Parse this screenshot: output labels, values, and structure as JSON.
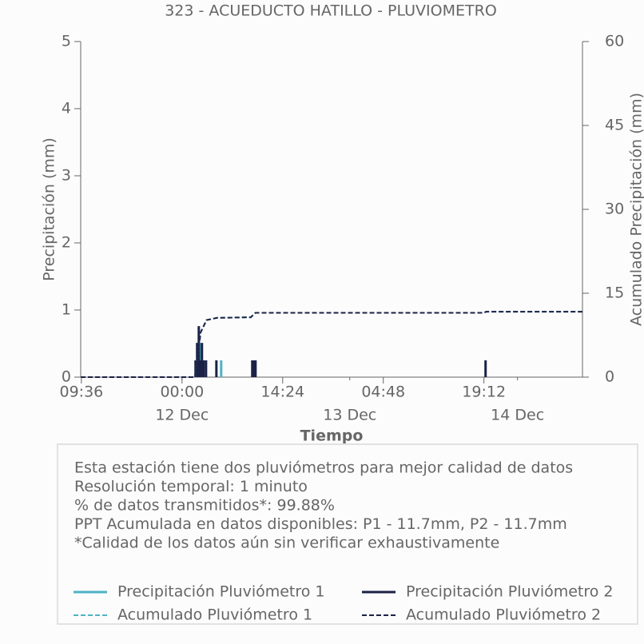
{
  "chart_data": {
    "type": "line",
    "title": "323 - ACUEDUCTO HATILLO - PLUVIOMETRO",
    "x_label": "Tiempo",
    "y_label": "Precipitación (mm)",
    "y2_label": "Acumulado Precipitación (mm)",
    "xlim": [
      "11 Dec 09:30",
      "14 Dec 09:18"
    ],
    "xticks": [
      {
        "value": "11 Dec 09:36",
        "label": "09:36"
      },
      {
        "value": "12 Dec 00:00",
        "label": "00:00"
      },
      {
        "value": "12 Dec 14:24",
        "label": "14:24"
      },
      {
        "value": "13 Dec 04:48",
        "label": "04:48"
      },
      {
        "value": "13 Dec 19:12",
        "label": "19:12"
      }
    ],
    "xdays": [
      {
        "value": "12 Dec 00:00",
        "label": "12 Dec"
      },
      {
        "value": "13 Dec 00:00",
        "label": "13 Dec"
      },
      {
        "value": "14 Dec 00:00",
        "label": "14 Dec"
      }
    ],
    "ylim": [
      0,
      5
    ],
    "yticks": [
      0,
      1,
      2,
      3,
      4,
      5
    ],
    "y2lim": [
      0,
      60
    ],
    "y2ticks": [
      0,
      15,
      30,
      45,
      60
    ],
    "series": [
      {
        "name": "Precipitación Pluviómetro 1",
        "color": "#4eb3c4",
        "kind": "bar",
        "x": [
          "12 Dec 02:10",
          "12 Dec 02:38",
          "12 Dec 03:05",
          "12 Dec 05:36",
          "12 Dec 10:17"
        ],
        "values": [
          0.51,
          0.51,
          0.25,
          0.25,
          0.25
        ]
      },
      {
        "name": "Precipitación Pluviómetro 2",
        "color": "#1c2247",
        "kind": "bar",
        "x": [
          "12 Dec 01:56",
          "12 Dec 02:10",
          "12 Dec 02:24",
          "12 Dec 02:38",
          "12 Dec 02:51",
          "12 Dec 03:05",
          "12 Dec 03:26",
          "12 Dec 04:55",
          "12 Dec 10:03",
          "12 Dec 10:17",
          "12 Dec 10:31",
          "13 Dec 19:26"
        ],
        "values": [
          0.25,
          0.51,
          0.76,
          0.25,
          0.51,
          0.25,
          0.25,
          0.25,
          0.25,
          0.25,
          0.25,
          0.25
        ]
      },
      {
        "name": "Acumulado Pluviómetro 1",
        "color": "#4eb3c4",
        "kind": "line",
        "dashed": true,
        "axis": "y2",
        "x": [
          "11 Dec 09:30",
          "12 Dec 01:50",
          "12 Dec 02:10",
          "12 Dec 02:40",
          "12 Dec 03:30",
          "12 Dec 05:00",
          "12 Dec 09:50",
          "12 Dec 10:30",
          "13 Dec 19:12",
          "13 Dec 19:30",
          "14 Dec 09:18"
        ],
        "values": [
          0,
          0,
          3,
          8,
          10.2,
          10.6,
          10.7,
          11.5,
          11.5,
          11.7,
          11.7
        ]
      },
      {
        "name": "Acumulado Pluviómetro 2",
        "color": "#1c2247",
        "kind": "line",
        "dashed": true,
        "axis": "y2",
        "x": [
          "11 Dec 09:30",
          "12 Dec 01:50",
          "12 Dec 02:10",
          "12 Dec 02:40",
          "12 Dec 03:30",
          "12 Dec 05:00",
          "12 Dec 09:50",
          "12 Dec 10:30",
          "13 Dec 19:12",
          "13 Dec 19:30",
          "14 Dec 09:18"
        ],
        "values": [
          0,
          0,
          3,
          8,
          10.2,
          10.6,
          10.7,
          11.5,
          11.5,
          11.7,
          11.7
        ]
      }
    ],
    "notes": [
      "Esta estación tiene dos pluviómetros para mejor calidad de datos",
      "Resolución temporal: 1 minuto",
      "% de datos transmitidos*: 99.88%",
      "PPT Acumulada en datos disponibles: P1 - 11.7mm, P2 - 11.7mm",
      "*Calidad de los datos aún sin verificar exhaustivamente"
    ]
  }
}
